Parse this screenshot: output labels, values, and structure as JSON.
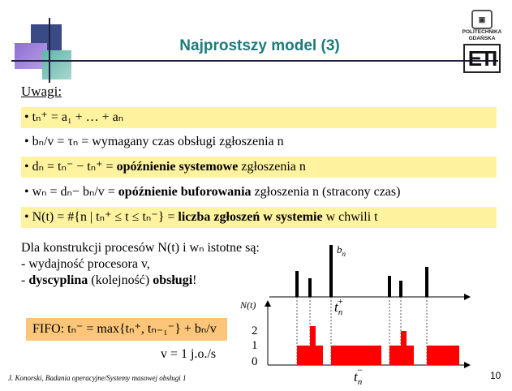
{
  "slide": {
    "title": "Najprostszy model (3)",
    "logo": {
      "line1": "POLITECHNIKA",
      "line2": "GDAŃSKA",
      "mark": "ETI"
    },
    "uwagi": "Uwagi:",
    "bullets": [
      {
        "text": "• tₙ⁺ = a₁ + … + aₙ"
      },
      {
        "text": "• bₙ/v = τₙ = wymagany czas obsługi zgłoszenia n"
      },
      {
        "text_pre": "• dₙ = tₙ⁻ − tₙ⁺ = ",
        "bold": "opóźnienie systemowe",
        "text_post": " zgłoszenia n"
      },
      {
        "text_pre": "• wₙ = dₙ− bₙ/v = ",
        "bold": "opóźnienie buforowania",
        "text_post": " zgłoszenia n (stracony czas)"
      },
      {
        "text_pre": "• N(t) = #{n | tₙ⁺ ≤ t ≤ tₙ⁻} = ",
        "bold": "liczba zgłoszeń w systemie",
        "text_post": " w chwili t"
      }
    ],
    "para": {
      "line1": "Dla konstrukcji procesów N(t) i wₙ istotne są:",
      "line2": "- wydajność procesora v,",
      "line3_pre": "- ",
      "line3_bold1": "dyscyplina",
      "line3_mid": " (kolejność) ",
      "line3_bold2": "obsługi",
      "line3_post": "!"
    },
    "fifo": "FIFO: tₙ⁻ =  max{tₙ⁺, tₙ₋₁⁻} + bₙ/v",
    "rate": "v = 1 j.o./s",
    "footer": "J. Konorski, Badania operacyjne/Systemy masowej obsługi 1",
    "page_number": "10"
  },
  "diagram": {
    "labels": {
      "bn": "b",
      "bn_sub": "n",
      "tn_plus": "t",
      "tn_plus_sub": "n",
      "tn_plus_sup": "+",
      "Nt": "N(t)",
      "tn_minus": "t",
      "tn_minus_sub": "n",
      "tn_minus_sup": "−"
    },
    "y_ticks": [
      "2",
      "1",
      "0"
    ],
    "arrival_color": "#000000",
    "fill_color": "#ff0000"
  }
}
